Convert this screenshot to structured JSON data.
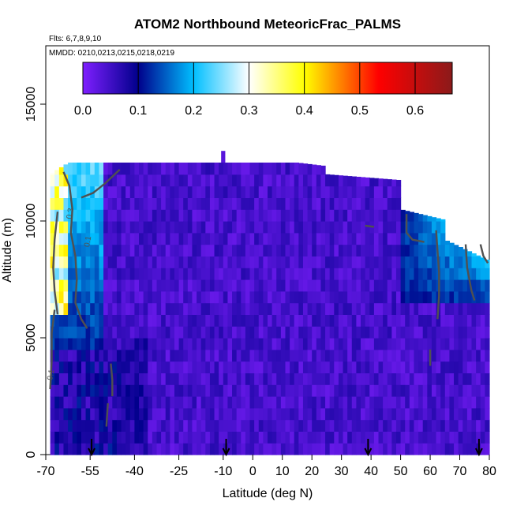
{
  "chart_data": {
    "type": "heatmap",
    "title": "ATOM2 Northbound MeteoricFrac_PALMS",
    "subtitle_flights": "Flts: 6,7,8,9,10",
    "subtitle_dates": "MMDD: 0210,0213,0215,0218,0219",
    "xlabel": "Latitude (deg N)",
    "ylabel": "Altitude (m)",
    "xlim": [
      -70,
      80
    ],
    "ylim": [
      0,
      17500
    ],
    "x_ticks": [
      -70,
      -55,
      -40,
      -25,
      -10,
      0,
      10,
      20,
      30,
      40,
      50,
      60,
      70,
      80
    ],
    "x_tick_labels": [
      "-70",
      "-55",
      "-40",
      "-25",
      "-10",
      "0",
      "10",
      "20",
      "30",
      "40",
      "50",
      "60",
      "70",
      "80"
    ],
    "y_ticks": [
      0,
      5000,
      10000,
      15000
    ],
    "y_tick_labels": [
      "0",
      "5000",
      "10000",
      "15000"
    ],
    "colorbar": {
      "range": [
        0,
        0.667
      ],
      "ticks": [
        0.0,
        0.1,
        0.2,
        0.3,
        0.4,
        0.5,
        0.6
      ],
      "tick_labels": [
        "0.0",
        "0.1",
        "0.2",
        "0.3",
        "0.4",
        "0.5",
        "0.6"
      ],
      "colors": [
        "#7f1fff",
        "#00008b",
        "#00bfff",
        "#ffffff",
        "#ffff00",
        "#ff0000",
        "#8b1a1a"
      ]
    },
    "flight_marker_latitudes": [
      -54.5,
      -9,
      39,
      76.5
    ],
    "contour_labels": [
      "0.3",
      "0.1",
      "0.1"
    ],
    "field_summary": [
      {
        "lat_range": [
          -68,
          -61
        ],
        "alt_range": [
          6000,
          12500
        ],
        "value_range": [
          0.2,
          0.45
        ]
      },
      {
        "lat_range": [
          -61,
          -50
        ],
        "alt_range": [
          5000,
          12500
        ],
        "value_range": [
          0.1,
          0.25
        ]
      },
      {
        "lat_range": [
          -50,
          50
        ],
        "alt_range": [
          0,
          12500
        ],
        "value_range": [
          0.0,
          0.08
        ]
      },
      {
        "lat_range": [
          50,
          80
        ],
        "alt_range": [
          7000,
          10500
        ],
        "value_range": [
          0.1,
          0.28
        ]
      },
      {
        "lat_range": [
          -70,
          80
        ],
        "alt_range": [
          0,
          5000
        ],
        "value_range": [
          0.0,
          0.12
        ]
      }
    ]
  }
}
